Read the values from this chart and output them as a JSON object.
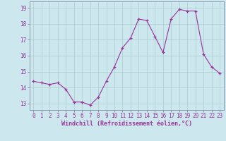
{
  "x": [
    0,
    1,
    2,
    3,
    4,
    5,
    6,
    7,
    8,
    9,
    10,
    11,
    12,
    13,
    14,
    15,
    16,
    17,
    18,
    19,
    20,
    21,
    22,
    23
  ],
  "y": [
    14.4,
    14.3,
    14.2,
    14.3,
    13.9,
    13.1,
    13.1,
    12.9,
    13.4,
    14.4,
    15.3,
    16.5,
    17.1,
    18.3,
    18.2,
    17.2,
    16.2,
    18.3,
    18.9,
    18.8,
    18.8,
    16.1,
    15.3,
    14.9
  ],
  "line_color": "#993399",
  "marker_color": "#993399",
  "bg_color": "#cce8ee",
  "grid_color": "#aacccc",
  "tick_label_color": "#993399",
  "xlabel": "Windchill (Refroidissement éolien,°C)",
  "ylim": [
    12.6,
    19.4
  ],
  "yticks": [
    13,
    14,
    15,
    16,
    17,
    18,
    19
  ],
  "xticks": [
    0,
    1,
    2,
    3,
    4,
    5,
    6,
    7,
    8,
    9,
    10,
    11,
    12,
    13,
    14,
    15,
    16,
    17,
    18,
    19,
    20,
    21,
    22,
    23
  ],
  "xlabel_color": "#993399",
  "label_fontsize": 6.0,
  "tick_fontsize": 5.5
}
